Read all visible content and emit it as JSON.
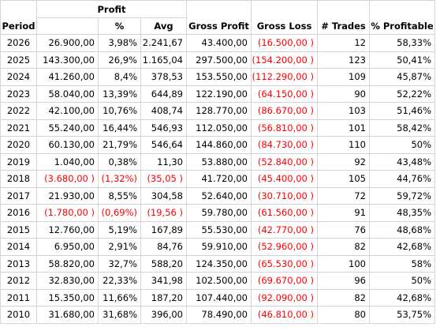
{
  "headers": {
    "period": "Period",
    "profit": "Profit",
    "profit_pct": "%",
    "avg": "Avg",
    "gross_profit": "Gross Profit",
    "gross_loss": "Gross Loss",
    "trades": "# Trades",
    "pct_profitable": "% Profitable"
  },
  "colors": {
    "negative": "#ff0000",
    "gridline": "#d4d4d4"
  },
  "rows": [
    {
      "period": "2026",
      "profit": "26.900,00",
      "profit_pct": "3,98%",
      "avg": "2.241,67",
      "gross_profit": "43.400,00",
      "gross_loss": "(16.500,00 )",
      "trades": "12",
      "pct_profitable": "58,33%",
      "negative": false
    },
    {
      "period": "2025",
      "profit": "143.300,00",
      "profit_pct": "26,9%",
      "avg": "1.165,04",
      "gross_profit": "297.500,00",
      "gross_loss": "(154.200,00 )",
      "trades": "123",
      "pct_profitable": "50,41%",
      "negative": false
    },
    {
      "period": "2024",
      "profit": "41.260,00",
      "profit_pct": "8,4%",
      "avg": "378,53",
      "gross_profit": "153.550,00",
      "gross_loss": "(112.290,00 )",
      "trades": "109",
      "pct_profitable": "45,87%",
      "negative": false
    },
    {
      "period": "2023",
      "profit": "58.040,00",
      "profit_pct": "13,39%",
      "avg": "644,89",
      "gross_profit": "122.190,00",
      "gross_loss": "(64.150,00 )",
      "trades": "90",
      "pct_profitable": "52,22%",
      "negative": false
    },
    {
      "period": "2022",
      "profit": "42.100,00",
      "profit_pct": "10,76%",
      "avg": "408,74",
      "gross_profit": "128.770,00",
      "gross_loss": "(86.670,00 )",
      "trades": "103",
      "pct_profitable": "51,46%",
      "negative": false
    },
    {
      "period": "2021",
      "profit": "55.240,00",
      "profit_pct": "16,44%",
      "avg": "546,93",
      "gross_profit": "112.050,00",
      "gross_loss": "(56.810,00 )",
      "trades": "101",
      "pct_profitable": "58,42%",
      "negative": false
    },
    {
      "period": "2020",
      "profit": "60.130,00",
      "profit_pct": "21,79%",
      "avg": "546,64",
      "gross_profit": "144.860,00",
      "gross_loss": "(84.730,00 )",
      "trades": "110",
      "pct_profitable": "50%",
      "negative": false
    },
    {
      "period": "2019",
      "profit": "1.040,00",
      "profit_pct": "0,38%",
      "avg": "11,30",
      "gross_profit": "53.880,00",
      "gross_loss": "(52.840,00 )",
      "trades": "92",
      "pct_profitable": "43,48%",
      "negative": false
    },
    {
      "period": "2018",
      "profit": "(3.680,00 )",
      "profit_pct": "(1,32%)",
      "avg": "(35,05 )",
      "gross_profit": "41.720,00",
      "gross_loss": "(45.400,00 )",
      "trades": "105",
      "pct_profitable": "44,76%",
      "negative": true
    },
    {
      "period": "2017",
      "profit": "21.930,00",
      "profit_pct": "8,55%",
      "avg": "304,58",
      "gross_profit": "52.640,00",
      "gross_loss": "(30.710,00 )",
      "trades": "72",
      "pct_profitable": "59,72%",
      "negative": false
    },
    {
      "period": "2016",
      "profit": "(1.780,00 )",
      "profit_pct": "(0,69%)",
      "avg": "(19,56 )",
      "gross_profit": "59.780,00",
      "gross_loss": "(61.560,00 )",
      "trades": "91",
      "pct_profitable": "48,35%",
      "negative": true
    },
    {
      "period": "2015",
      "profit": "12.760,00",
      "profit_pct": "5,19%",
      "avg": "167,89",
      "gross_profit": "55.530,00",
      "gross_loss": "(42.770,00 )",
      "trades": "76",
      "pct_profitable": "48,68%",
      "negative": false
    },
    {
      "period": "2014",
      "profit": "6.950,00",
      "profit_pct": "2,91%",
      "avg": "84,76",
      "gross_profit": "59.910,00",
      "gross_loss": "(52.960,00 )",
      "trades": "82",
      "pct_profitable": "42,68%",
      "negative": false
    },
    {
      "period": "2013",
      "profit": "58.820,00",
      "profit_pct": "32,7%",
      "avg": "588,20",
      "gross_profit": "124.350,00",
      "gross_loss": "(65.530,00 )",
      "trades": "100",
      "pct_profitable": "58%",
      "negative": false
    },
    {
      "period": "2012",
      "profit": "32.830,00",
      "profit_pct": "22,33%",
      "avg": "341,98",
      "gross_profit": "102.500,00",
      "gross_loss": "(69.670,00 )",
      "trades": "96",
      "pct_profitable": "50%",
      "negative": false
    },
    {
      "period": "2011",
      "profit": "15.350,00",
      "profit_pct": "11,66%",
      "avg": "187,20",
      "gross_profit": "107.440,00",
      "gross_loss": "(92.090,00 )",
      "trades": "82",
      "pct_profitable": "42,68%",
      "negative": false
    },
    {
      "period": "2010",
      "profit": "31.680,00",
      "profit_pct": "31,68%",
      "avg": "396,00",
      "gross_profit": "78.490,00",
      "gross_loss": "(46.810,00 )",
      "trades": "80",
      "pct_profitable": "53,75%",
      "negative": false
    }
  ]
}
